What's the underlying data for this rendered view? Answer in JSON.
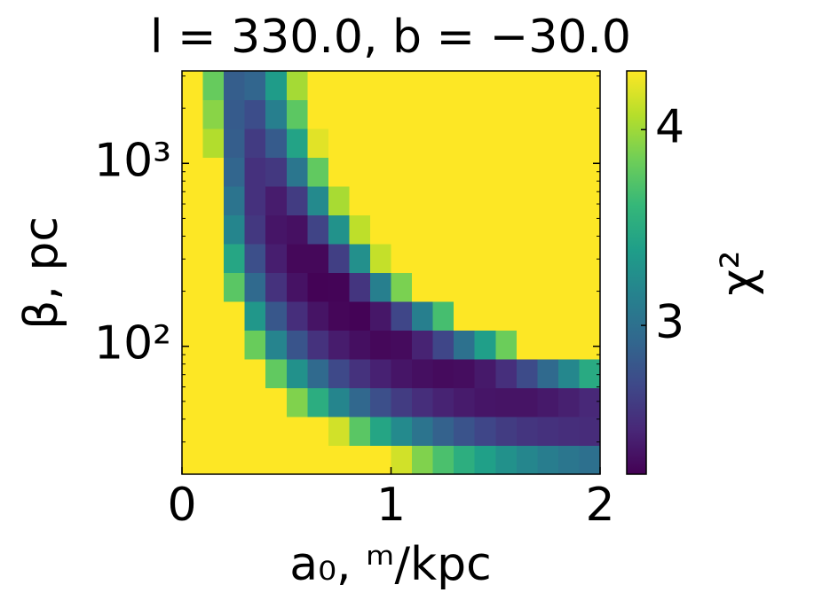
{
  "chart_data": {
    "type": "heatmap",
    "title": "l = 330.0, b = −30.0",
    "x_label": "a₀, ᵐ/kpc",
    "y_label": "β, pc",
    "colorbar_label": "χ²",
    "x": [
      0.05,
      0.15,
      0.25,
      0.35,
      0.45,
      0.55,
      0.65,
      0.75,
      0.85,
      0.95,
      1.05,
      1.15,
      1.25,
      1.35,
      1.45,
      1.55,
      1.65,
      1.75,
      1.85,
      1.95
    ],
    "y": [
      24.0,
      34.4,
      49.5,
      71.1,
      102.3,
      146.9,
      211.3,
      303.4,
      436.5,
      626.6,
      899.5,
      1294,
      1858,
      2673
    ],
    "z": [
      [
        4.3,
        4.3,
        4.3,
        4.3,
        4.3,
        4.3,
        4.3,
        4.3,
        4.3,
        4.3,
        4.16,
        3.9,
        3.7,
        3.53,
        3.4,
        3.28,
        3.19,
        3.11,
        3.05,
        3.0
      ],
      [
        4.3,
        4.3,
        4.3,
        4.3,
        4.3,
        4.3,
        4.3,
        4.16,
        3.76,
        3.45,
        3.22,
        3.03,
        2.88,
        2.77,
        2.68,
        2.61,
        2.56,
        2.53,
        2.51,
        2.5
      ],
      [
        4.3,
        4.3,
        4.3,
        4.3,
        4.3,
        3.9,
        3.52,
        3.18,
        2.93,
        2.74,
        2.61,
        2.51,
        2.44,
        2.39,
        2.36,
        2.35,
        2.35,
        2.38,
        2.42,
        2.47
      ],
      [
        4.3,
        4.3,
        4.3,
        4.3,
        3.79,
        3.28,
        2.94,
        2.7,
        2.54,
        2.43,
        2.36,
        2.32,
        2.3,
        2.31,
        2.38,
        2.52,
        2.71,
        2.94,
        3.2,
        3.49
      ],
      [
        4.3,
        4.3,
        4.3,
        3.82,
        3.17,
        2.78,
        2.54,
        2.4,
        2.32,
        2.28,
        2.3,
        2.44,
        2.68,
        3.01,
        3.39,
        3.83,
        4.3,
        4.3,
        4.3,
        4.3
      ],
      [
        4.3,
        4.3,
        4.3,
        3.33,
        2.8,
        2.51,
        2.35,
        2.27,
        2.25,
        2.37,
        2.68,
        3.13,
        3.68,
        4.3,
        4.3,
        4.3,
        4.3,
        4.3,
        4.3,
        4.3
      ],
      [
        4.3,
        4.3,
        3.76,
        2.94,
        2.54,
        2.34,
        2.25,
        2.26,
        2.56,
        3.13,
        3.88,
        4.3,
        4.3,
        4.3,
        4.3,
        4.3,
        4.3,
        4.3,
        4.3,
        4.3
      ],
      [
        4.3,
        4.3,
        3.46,
        2.74,
        2.41,
        2.28,
        2.28,
        2.63,
        3.27,
        4.12,
        4.3,
        4.3,
        4.3,
        4.3,
        4.3,
        4.3,
        4.3,
        4.3,
        4.3,
        4.3
      ],
      [
        4.3,
        4.3,
        3.18,
        2.58,
        2.36,
        2.33,
        2.66,
        3.29,
        4.1,
        4.3,
        4.3,
        4.3,
        4.3,
        4.3,
        4.3,
        4.3,
        4.3,
        4.3,
        4.3,
        4.3
      ],
      [
        4.3,
        4.3,
        3.03,
        2.53,
        2.4,
        2.61,
        3.22,
        4.03,
        4.3,
        4.3,
        4.3,
        4.3,
        4.3,
        4.3,
        4.3,
        4.3,
        4.3,
        4.3,
        4.3,
        4.3
      ],
      [
        4.3,
        4.3,
        2.91,
        2.53,
        2.58,
        3.05,
        3.79,
        4.3,
        4.3,
        4.3,
        4.3,
        4.3,
        4.3,
        4.3,
        4.3,
        4.3,
        4.3,
        4.3,
        4.3,
        4.3
      ],
      [
        4.3,
        4.06,
        2.85,
        2.6,
        2.83,
        3.43,
        4.21,
        4.3,
        4.3,
        4.3,
        4.3,
        4.3,
        4.3,
        4.3,
        4.3,
        4.3,
        4.3,
        4.3,
        4.3,
        4.3
      ],
      [
        4.3,
        3.93,
        2.83,
        2.73,
        3.13,
        3.77,
        4.3,
        4.3,
        4.3,
        4.3,
        4.3,
        4.3,
        4.3,
        4.3,
        4.3,
        4.3,
        4.3,
        4.3,
        4.3,
        4.3
      ],
      [
        4.3,
        3.81,
        2.85,
        2.91,
        3.37,
        4.02,
        4.3,
        4.3,
        4.3,
        4.3,
        4.3,
        4.3,
        4.3,
        4.3,
        4.3,
        4.3,
        4.3,
        4.3,
        4.3,
        4.3
      ]
    ],
    "xlim": [
      0,
      2
    ],
    "xticks": [
      0,
      1,
      2
    ],
    "ylim": [
      20,
      3200
    ],
    "y_log": true,
    "yticks": [
      {
        "value": 100,
        "label": "10²"
      },
      {
        "value": 1000,
        "label": "10³"
      }
    ],
    "yminorticks": [
      20,
      30,
      40,
      50,
      60,
      70,
      80,
      90,
      200,
      300,
      400,
      500,
      600,
      700,
      800,
      900,
      2000,
      3000
    ],
    "clim": [
      2.24,
      4.3
    ],
    "cticks": [
      3,
      4
    ],
    "colormap": [
      "#440154",
      "#482878",
      "#3e4989",
      "#31688e",
      "#26828e",
      "#1f9e89",
      "#35b779",
      "#6ece58",
      "#b5de2b",
      "#fde725"
    ]
  }
}
